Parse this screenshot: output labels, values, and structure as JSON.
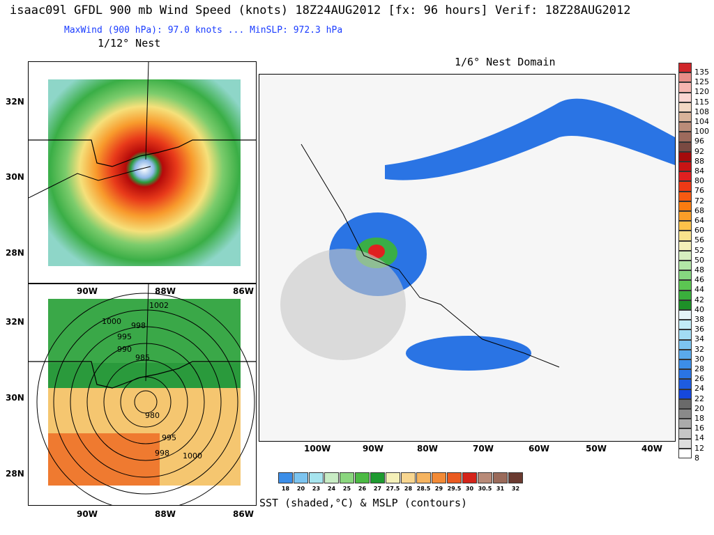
{
  "header": {
    "title": "isaac09l GFDL 900 mb Wind Speed (knots) 18Z24AUG2012 [fx: 96 hours] Verif: 18Z28AUG2012",
    "subtitle": "MaxWind (900 hPa):  97.0 knots ... MinSLP: 972.3 hPa",
    "nest_label": "1/12° Nest",
    "domain_label": "1/6° Nest Domain"
  },
  "nest_panel": {
    "lat_labels": [
      "32N",
      "30N",
      "28N"
    ],
    "lon_labels": [
      "90W",
      "88W",
      "86W"
    ]
  },
  "sst_panel": {
    "lat_labels": [
      "32N",
      "30N",
      "28N"
    ],
    "lon_labels": [
      "90W",
      "88W",
      "86W"
    ],
    "contour_labels": [
      "1002",
      "1000",
      "998",
      "995",
      "990",
      "985",
      "980",
      "995",
      "998",
      "1000"
    ]
  },
  "domain_panel": {
    "lon_labels": [
      "100W",
      "90W",
      "80W",
      "70W",
      "60W",
      "50W",
      "40W"
    ]
  },
  "wind_colorbar": {
    "labels": [
      "135",
      "125",
      "120",
      "115",
      "108",
      "104",
      "100",
      "96",
      "92",
      "88",
      "84",
      "80",
      "76",
      "72",
      "68",
      "64",
      "60",
      "56",
      "52",
      "50",
      "48",
      "46",
      "44",
      "42",
      "40",
      "38",
      "36",
      "34",
      "32",
      "30",
      "28",
      "26",
      "24",
      "22",
      "20",
      "18",
      "16",
      "14",
      "12",
      "8"
    ],
    "colors": [
      "#d0262a",
      "#e88e88",
      "#f6b6b0",
      "#fbd6d2",
      "#f2d8c4",
      "#d9b39a",
      "#bb8c78",
      "#9d6a5c",
      "#7a4a42",
      "#a50b0b",
      "#c81414",
      "#e02020",
      "#ef3a16",
      "#f85a12",
      "#fb7c10",
      "#fb9e28",
      "#fcc24a",
      "#fae38c",
      "#f4f0b8",
      "#d6eec0",
      "#b2e6a6",
      "#86d680",
      "#5cc652",
      "#3aae3c",
      "#1e9028",
      "#e6f4f8",
      "#c2ecf6",
      "#a2dcf4",
      "#7cc4f0",
      "#5aaaec",
      "#3c8ee8",
      "#2a74e4",
      "#1e5ce0",
      "#1648dc",
      "#6a6a6a",
      "#8a8a8a",
      "#aaaaaa",
      "#c6c6c6",
      "#dedede",
      "#ffffff"
    ]
  },
  "sst_colorbar": {
    "labels": [
      "18",
      "20",
      "23",
      "24",
      "25",
      "26",
      "27",
      "27.5",
      "28",
      "28.5",
      "29",
      "29.5",
      "30",
      "30.5",
      "31",
      "32"
    ],
    "colors": [
      "#3c8ee8",
      "#7cc4f0",
      "#a6e4ee",
      "#c8ecc4",
      "#8ad67e",
      "#4cba44",
      "#1e9a30",
      "#f4f0b8",
      "#f8d690",
      "#f6b460",
      "#f28a36",
      "#ea5a20",
      "#d4241a",
      "#b88a78",
      "#9a6a5a",
      "#6a3a30"
    ],
    "caption": "SST (shaded,°C) & MSLP (contours)"
  }
}
